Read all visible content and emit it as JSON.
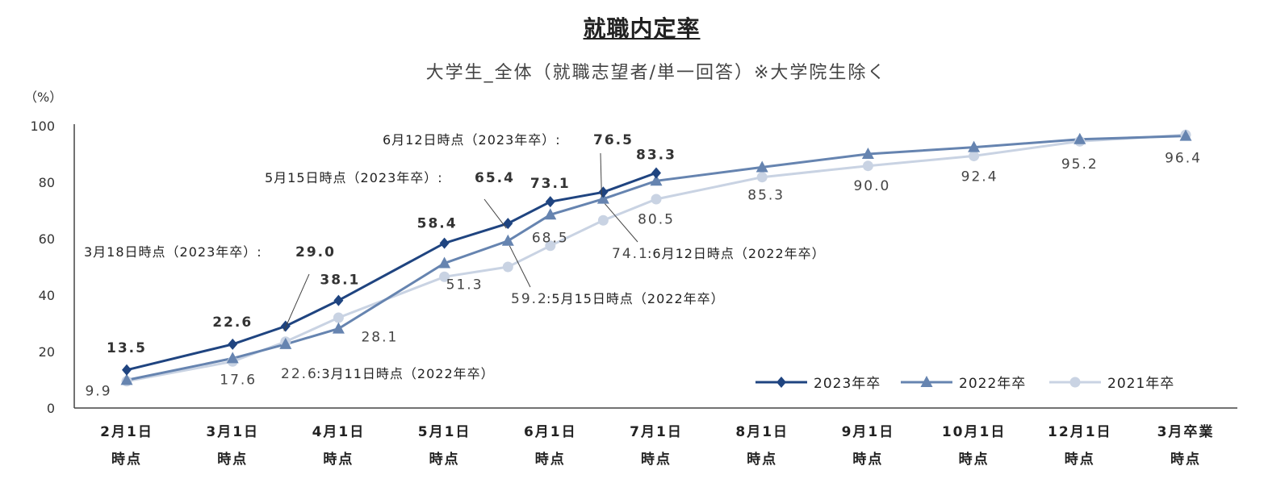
{
  "chart_data": {
    "type": "line",
    "title": "就職内定率",
    "subtitle": "大学生_全体（就職志望者/単一回答）※大学院生除く",
    "ylabel": "（%）",
    "ylim": [
      0,
      100
    ],
    "yticks": [
      0,
      20,
      40,
      60,
      80,
      100
    ],
    "categories": [
      [
        "2月1日",
        "時点"
      ],
      [
        "3月1日",
        "時点"
      ],
      [
        "4月1日",
        "時点"
      ],
      [
        "5月1日",
        "時点"
      ],
      [
        "6月1日",
        "時点"
      ],
      [
        "7月1日",
        "時点"
      ],
      [
        "8月1日",
        "時点"
      ],
      [
        "9月1日",
        "時点"
      ],
      [
        "10月1日",
        "時点"
      ],
      [
        "12月1日",
        "時点"
      ],
      [
        "3月卒業",
        "時点"
      ]
    ],
    "series": [
      {
        "name": "2023年卒",
        "color": "#1f4480",
        "marker": "diamond",
        "points": [
          {
            "x": 0,
            "y": 13.5,
            "label": "13.5"
          },
          {
            "x": 1,
            "y": 22.6,
            "label": "22.6"
          },
          {
            "x": 1.5,
            "y": 29.0,
            "label": "29.0"
          },
          {
            "x": 2,
            "y": 38.1,
            "label": "38.1"
          },
          {
            "x": 3,
            "y": 58.4,
            "label": "58.4"
          },
          {
            "x": 3.6,
            "y": 65.4,
            "label": "65.4"
          },
          {
            "x": 4,
            "y": 73.1,
            "label": "73.1"
          },
          {
            "x": 4.5,
            "y": 76.5,
            "label": "76.5"
          },
          {
            "x": 5,
            "y": 83.3,
            "label": "83.3"
          }
        ]
      },
      {
        "name": "2022年卒",
        "color": "#6684b0",
        "marker": "triangle",
        "points": [
          {
            "x": 0,
            "y": 9.9,
            "label": "9.9"
          },
          {
            "x": 1,
            "y": 17.6,
            "label": "17.6"
          },
          {
            "x": 1.5,
            "y": 22.6,
            "label": "22.6"
          },
          {
            "x": 2,
            "y": 28.1,
            "label": "28.1"
          },
          {
            "x": 3,
            "y": 51.3,
            "label": "51.3"
          },
          {
            "x": 3.6,
            "y": 59.2,
            "label": "59.2"
          },
          {
            "x": 4,
            "y": 68.5,
            "label": "68.5"
          },
          {
            "x": 4.5,
            "y": 74.1,
            "label": "74.1"
          },
          {
            "x": 5,
            "y": 80.5,
            "label": "80.5"
          },
          {
            "x": 6,
            "y": 85.3,
            "label": "85.3"
          },
          {
            "x": 7,
            "y": 90.0,
            "label": "90.0"
          },
          {
            "x": 8,
            "y": 92.4,
            "label": "92.4"
          },
          {
            "x": 9,
            "y": 95.2,
            "label": "95.2"
          },
          {
            "x": 10,
            "y": 96.4,
            "label": "96.4"
          }
        ]
      },
      {
        "name": "2021年卒",
        "color": "#c9d3e3",
        "marker": "circle",
        "points": [
          {
            "x": 0,
            "y": 9.5
          },
          {
            "x": 1,
            "y": 16.5
          },
          {
            "x": 1.5,
            "y": 23.5
          },
          {
            "x": 2,
            "y": 32.0
          },
          {
            "x": 3,
            "y": 46.5
          },
          {
            "x": 3.6,
            "y": 50.0
          },
          {
            "x": 4,
            "y": 57.5
          },
          {
            "x": 4.5,
            "y": 66.5
          },
          {
            "x": 5,
            "y": 74.0
          },
          {
            "x": 6,
            "y": 81.8
          },
          {
            "x": 7,
            "y": 85.8
          },
          {
            "x": 8,
            "y": 89.3
          },
          {
            "x": 9,
            "y": 94.5
          },
          {
            "x": 10,
            "y": 96.8
          }
        ]
      }
    ],
    "annotations": [
      {
        "text": "3月18日時点（2023年卒）:",
        "value": "29.0",
        "series": 0
      },
      {
        "text": "5月15日時点（2023年卒）:",
        "value": "65.4",
        "series": 0
      },
      {
        "text": "6月12日時点（2023年卒）:",
        "value": "76.5",
        "series": 0
      },
      {
        "text": ":3月11日時点（2022年卒）",
        "value": "22.6",
        "series": 1
      },
      {
        "text": ":5月15日時点（2022年卒）",
        "value": "59.2",
        "series": 1
      },
      {
        "text": ":6月12日時点（2022年卒）",
        "value": "74.1",
        "series": 1
      }
    ],
    "legend_position": "bottom-right"
  }
}
